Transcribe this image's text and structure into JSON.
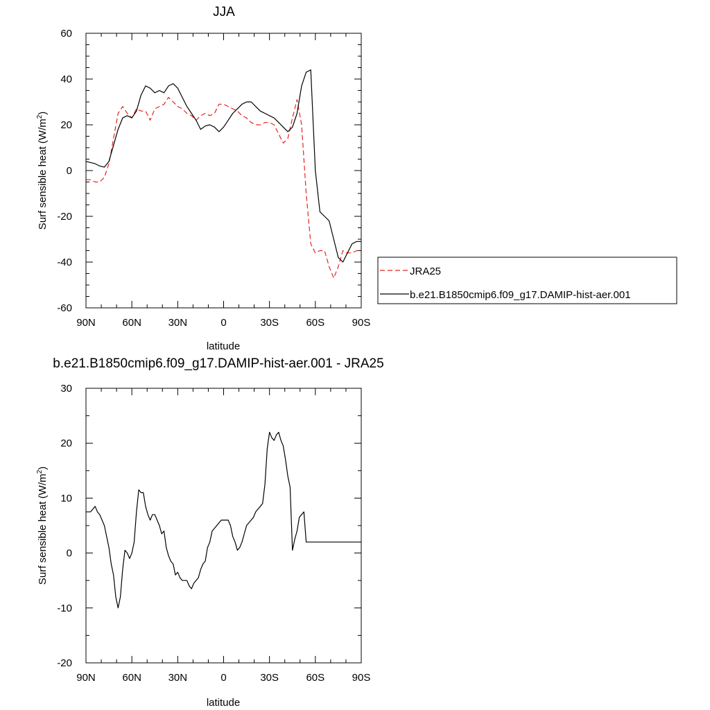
{
  "chart_data": [
    {
      "type": "line",
      "title": "JJA",
      "xlabel": "latitude",
      "ylabel_main": "Surf sensible heat (W/m",
      "ylabel_sup": "2",
      "ylabel_close": ")",
      "xlim": [
        90,
        -90
      ],
      "ylim": [
        -60,
        60
      ],
      "xtick_values": [
        90,
        60,
        30,
        0,
        -30,
        -60,
        -90
      ],
      "xtick_labels": [
        "90N",
        "60N",
        "30N",
        "0",
        "30S",
        "60S",
        "90S"
      ],
      "ytick_values": [
        -60,
        -40,
        -20,
        0,
        20,
        40,
        60
      ],
      "ytick_labels": [
        "-60",
        "-40",
        "-20",
        "0",
        "20",
        "40",
        "60"
      ],
      "grid": false,
      "legend_position": "right",
      "series": [
        {
          "name": "JRA25",
          "color": "#e8211f",
          "dash": "dashed",
          "x": [
            90,
            87,
            84,
            81,
            78,
            75,
            72,
            69,
            66,
            63,
            60,
            57,
            54,
            51,
            48,
            45,
            42,
            39,
            36,
            33,
            30,
            27,
            24,
            21,
            18,
            15,
            12,
            9,
            6,
            3,
            0,
            -3,
            -6,
            -9,
            -12,
            -15,
            -18,
            -21,
            -24,
            -27,
            -30,
            -33,
            -36,
            -39,
            -42,
            -45,
            -48,
            -51,
            -54,
            -57,
            -60,
            -63,
            -66,
            -69,
            -72,
            -75,
            -78,
            -81,
            -84,
            -87,
            -90
          ],
          "y": [
            -4,
            -4,
            -5,
            -5,
            -3,
            3,
            14,
            25,
            28,
            25,
            23,
            27,
            26,
            26,
            22,
            27,
            28,
            29,
            32,
            30,
            28,
            27,
            25,
            24,
            22,
            24,
            25,
            24,
            25,
            29,
            29,
            28,
            27,
            26,
            24,
            23,
            21,
            20,
            20,
            21,
            21,
            20,
            16,
            12,
            14,
            23,
            31,
            20,
            -10,
            -32,
            -36,
            -35,
            -35,
            -42,
            -47,
            -42,
            -35,
            -36,
            -36,
            -35,
            -35
          ]
        },
        {
          "name": "b.e21.B1850cmip6.f09_g17.DAMIP-hist-aer.001",
          "color": "#000000",
          "dash": "solid",
          "x": [
            90,
            87,
            84,
            81,
            78,
            75,
            72,
            69,
            66,
            63,
            60,
            57,
            54,
            51,
            48,
            45,
            42,
            39,
            36,
            33,
            30,
            27,
            24,
            21,
            18,
            15,
            12,
            9,
            6,
            3,
            0,
            -3,
            -6,
            -9,
            -12,
            -15,
            -18,
            -21,
            -24,
            -27,
            -30,
            -33,
            -36,
            -39,
            -42,
            -45,
            -48,
            -51,
            -54,
            -57,
            -60,
            -63,
            -66,
            -69,
            -72,
            -75,
            -78,
            -81,
            -84,
            -87,
            -90
          ],
          "y": [
            4,
            3.5,
            3,
            2,
            1.5,
            4,
            11,
            18,
            23,
            24,
            23,
            26,
            33,
            37,
            36,
            34,
            35,
            34,
            37,
            38,
            36,
            32,
            28,
            25,
            22,
            18,
            19.5,
            20,
            19,
            17,
            19,
            22,
            25,
            27,
            29,
            30,
            30,
            28,
            26,
            25,
            24,
            23,
            21,
            19,
            17,
            19,
            25,
            37,
            43,
            44,
            0,
            -18,
            -20,
            -22,
            -30,
            -38,
            -40,
            -36,
            -32,
            -31,
            -31
          ]
        }
      ]
    },
    {
      "type": "line",
      "title": "b.e21.B1850cmip6.f09_g17.DAMIP-hist-aer.001 - JRA25",
      "xlabel": "latitude",
      "ylabel_main": "Surf sensible heat (W/m",
      "ylabel_sup": "2",
      "ylabel_close": ")",
      "xlim": [
        90,
        -90
      ],
      "ylim": [
        -20,
        30
      ],
      "xtick_values": [
        90,
        60,
        30,
        0,
        -30,
        -60,
        -90
      ],
      "xtick_labels": [
        "90N",
        "60N",
        "30N",
        "0",
        "30S",
        "60S",
        "90S"
      ],
      "ytick_values": [
        -20,
        -10,
        0,
        10,
        20,
        30
      ],
      "ytick_labels": [
        "-20",
        "-10",
        "0",
        "10",
        "20",
        "30"
      ],
      "grid": false,
      "series": [
        {
          "color": "#000000",
          "dash": "solid",
          "x": [
            90,
            88.5,
            87,
            85.5,
            84,
            82.5,
            81,
            79.5,
            78,
            76.5,
            75,
            73.5,
            72,
            70.5,
            69,
            67.5,
            66,
            64.5,
            63,
            61.5,
            60,
            58.5,
            57,
            55.5,
            54,
            52.5,
            51,
            49.5,
            48,
            46.5,
            45,
            43.5,
            42,
            40.5,
            39,
            37.5,
            36,
            34.5,
            33,
            31.5,
            30,
            28.5,
            27,
            25.5,
            24,
            22.5,
            21,
            19.5,
            18,
            16.5,
            15,
            13.5,
            12,
            10.5,
            9,
            7.5,
            6,
            4.5,
            3,
            1.5,
            0,
            -1.5,
            -3,
            -4.5,
            -6,
            -7.5,
            -9,
            -10.5,
            -12,
            -13.5,
            -15,
            -16.5,
            -18,
            -19.5,
            -21,
            -22.5,
            -24,
            -25.5,
            -27,
            -28.5,
            -30,
            -31.5,
            -33,
            -34.5,
            -36,
            -37.5,
            -39,
            -40.5,
            -42,
            -43.5,
            -45,
            -46.5,
            -48,
            -49.5,
            -51,
            -52.5,
            -54,
            -55.5,
            -57,
            -58.5,
            -60,
            -61.5,
            -63,
            -64.5,
            -66,
            -67.5,
            -69,
            -70.5,
            -72,
            -73.5,
            -75,
            -76.5,
            -78,
            -79.5,
            -81,
            -82.5,
            -84,
            -85.5,
            -87,
            -88.5,
            -90
          ],
          "y": [
            7.5,
            7.5,
            7.5,
            8,
            8.5,
            7.5,
            7,
            6,
            5,
            3,
            1,
            -2,
            -4,
            -8,
            -10,
            -8,
            -3,
            0.5,
            0,
            -1,
            0,
            2,
            7.5,
            11.5,
            11,
            11,
            8.5,
            7,
            6,
            7,
            7,
            6,
            5,
            3.5,
            4,
            1,
            -0.5,
            -1.5,
            -2,
            -4,
            -3.5,
            -4.5,
            -5,
            -5,
            -5,
            -6,
            -6.5,
            -5.5,
            -5,
            -4.5,
            -3,
            -2,
            -1.5,
            1,
            2,
            4,
            4.5,
            5,
            5.5,
            6,
            6,
            6,
            6,
            5,
            3,
            2,
            0.5,
            1,
            2,
            3.5,
            5,
            5.5,
            6,
            6.5,
            7.5,
            8,
            8.5,
            9,
            12.5,
            19,
            22,
            21,
            20.5,
            21.5,
            22,
            20.5,
            19.5,
            17,
            14,
            12,
            0.5,
            2.5,
            4,
            6.5,
            7,
            7.5,
            2,
            2,
            2,
            2,
            2,
            2,
            2,
            2,
            2,
            2,
            2,
            2,
            2,
            2,
            2,
            2,
            2,
            2,
            2,
            2,
            2,
            2,
            2,
            2,
            2
          ]
        }
      ]
    }
  ]
}
